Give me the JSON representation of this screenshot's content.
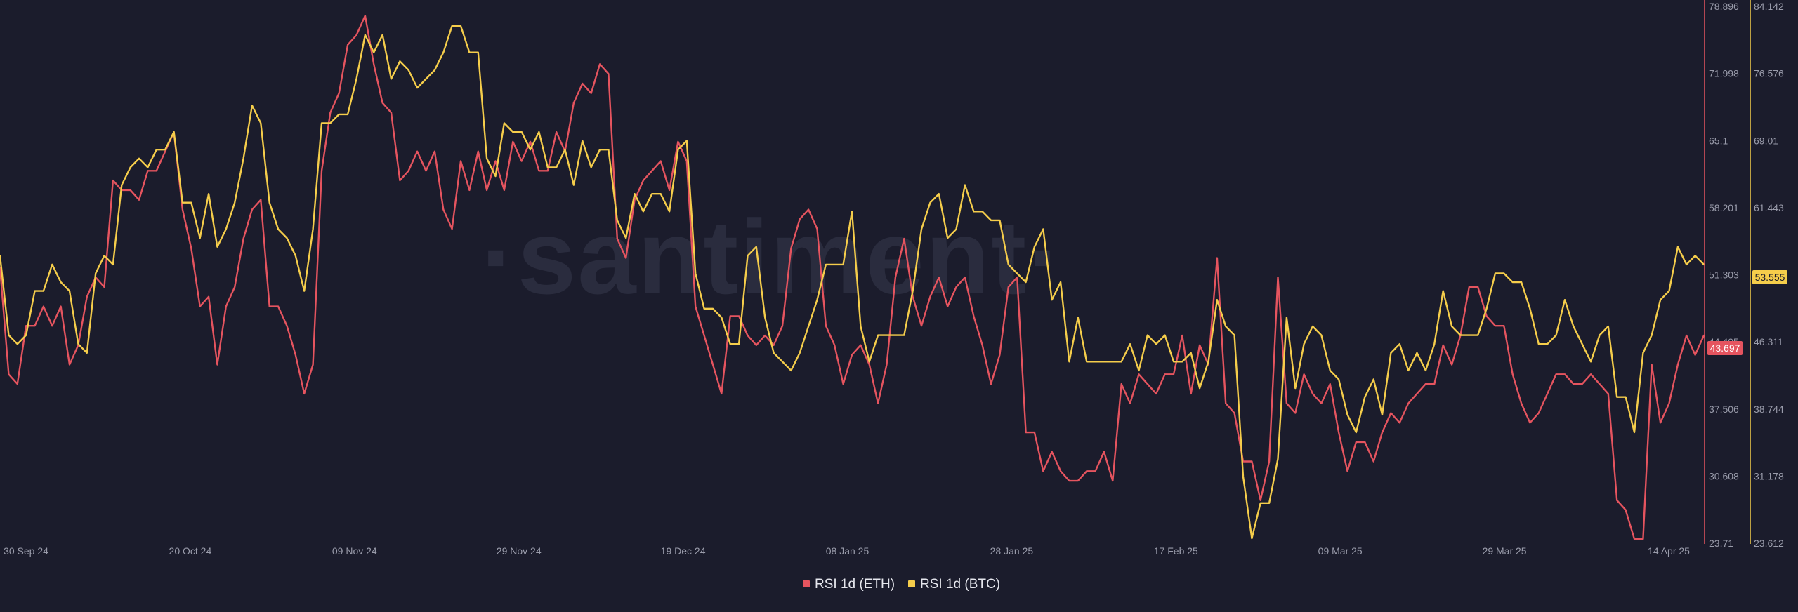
{
  "watermark": "·santiment·",
  "colors": {
    "background": "#1b1c2c",
    "eth": "#e5545f",
    "btc": "#f5cd4b",
    "tick_text": "#9a9cab"
  },
  "chart_data": {
    "type": "line",
    "x_tick_labels": [
      "30 Sep 24",
      "20 Oct 24",
      "09 Nov 24",
      "29 Nov 24",
      "19 Dec 24",
      "08 Jan 25",
      "28 Jan 25",
      "17 Feb 25",
      "09 Mar 25",
      "29 Mar 25",
      "14 Apr 25"
    ],
    "x_start_date": "2024-09-30",
    "x_end_date": "2025-04-14",
    "axes": {
      "eth": {
        "ticks": [
          "78.896",
          "71.998",
          "65.1",
          "58.201",
          "51.303",
          "44.405",
          "37.506",
          "30.608",
          "23.71"
        ],
        "ylim": [
          23.71,
          78.896
        ],
        "current": "43.697",
        "axis_color": "#e5545f"
      },
      "btc": {
        "ticks": [
          "84.142",
          "76.576",
          "69.01",
          "61.443",
          "53.877",
          "46.311",
          "38.744",
          "31.178",
          "23.612"
        ],
        "ylim": [
          23.612,
          84.142
        ],
        "current": "53.555",
        "axis_color": "#f5cd4b"
      }
    },
    "series": [
      {
        "name": "RSI 1d (ETH)",
        "color": "#e5545f",
        "axis": "eth",
        "values": [
          52,
          41,
          40,
          46,
          46,
          48,
          46,
          48,
          42,
          44,
          49,
          51,
          50,
          61,
          60,
          60,
          59,
          62,
          62,
          64,
          66,
          58,
          54,
          48,
          49,
          42,
          48,
          50,
          55,
          58,
          59,
          48,
          48,
          46,
          43,
          39,
          42,
          62,
          68,
          70,
          75,
          76,
          78,
          73,
          69,
          68,
          61,
          62,
          64,
          62,
          64,
          58,
          56,
          63,
          60,
          64,
          60,
          63,
          60,
          65,
          63,
          65,
          62,
          62,
          66,
          64,
          69,
          71,
          70,
          73,
          72,
          55,
          53,
          59,
          61,
          62,
          63,
          60,
          65,
          63,
          48,
          45,
          42,
          39,
          47,
          47,
          45,
          44,
          45,
          44,
          46,
          54,
          57,
          58,
          56,
          46,
          44,
          40,
          43,
          44,
          42,
          38,
          42,
          51,
          55,
          49,
          46,
          49,
          51,
          48,
          50,
          51,
          47,
          44,
          40,
          43,
          50,
          51,
          35,
          35,
          31,
          33,
          31,
          30,
          30,
          31,
          31,
          33,
          30,
          40,
          38,
          41,
          40,
          39,
          41,
          41,
          45,
          39,
          44,
          42,
          53,
          38,
          37,
          32,
          32,
          28,
          32,
          51,
          38,
          37,
          41,
          39,
          38,
          40,
          35,
          31,
          34,
          34,
          32,
          35,
          37,
          36,
          38,
          39,
          40,
          40,
          44,
          42,
          45,
          50,
          50,
          47,
          46,
          46,
          41,
          38,
          36,
          37,
          39,
          41,
          41,
          40,
          40,
          41,
          40,
          39,
          28,
          27,
          24,
          24,
          42,
          36,
          38,
          42,
          45,
          43,
          45
        ]
      },
      {
        "name": "RSI 1d (BTC)",
        "color": "#f5cd4b",
        "axis": "btc",
        "values": [
          56,
          47,
          46,
          47,
          52,
          52,
          55,
          53,
          52,
          46,
          45,
          54,
          56,
          55,
          64,
          66,
          67,
          66,
          68,
          68,
          70,
          62,
          62,
          58,
          63,
          57,
          59,
          62,
          67,
          73,
          71,
          62,
          59,
          58,
          56,
          52,
          59,
          71,
          71,
          72,
          72,
          76,
          81,
          79,
          81,
          76,
          78,
          77,
          75,
          76,
          77,
          79,
          82,
          82,
          79,
          79,
          67,
          65,
          71,
          70,
          70,
          68,
          70,
          66,
          66,
          68,
          64,
          69,
          66,
          68,
          68,
          60,
          58,
          63,
          61,
          63,
          63,
          61,
          68,
          69,
          54,
          50,
          50,
          49,
          46,
          46,
          56,
          57,
          49,
          45,
          44,
          43,
          45,
          48,
          51,
          55,
          55,
          55,
          61,
          48,
          44,
          47,
          47,
          47,
          47,
          52,
          59,
          62,
          63,
          58,
          59,
          64,
          61,
          61,
          60,
          60,
          55,
          54,
          53,
          57,
          59,
          51,
          53,
          44,
          49,
          44,
          44,
          44,
          44,
          44,
          46,
          43,
          47,
          46,
          47,
          44,
          44,
          45,
          41,
          44,
          51,
          48,
          47,
          31,
          24,
          28,
          28,
          33,
          49,
          41,
          46,
          48,
          47,
          43,
          42,
          38,
          36,
          40,
          42,
          38,
          45,
          46,
          43,
          45,
          43,
          46,
          52,
          48,
          47,
          47,
          47,
          50,
          54,
          54,
          53,
          53,
          50,
          46,
          46,
          47,
          51,
          48,
          46,
          44,
          47,
          48,
          40,
          40,
          36,
          45,
          47,
          51,
          52,
          57,
          55,
          56,
          55
        ]
      }
    ]
  },
  "legend": [
    {
      "label": "RSI 1d (ETH)",
      "color": "#e5545f"
    },
    {
      "label": "RSI 1d (BTC)",
      "color": "#f5cd4b"
    }
  ]
}
